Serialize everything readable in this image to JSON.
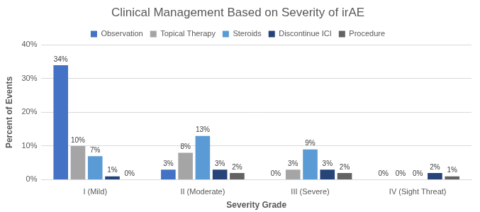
{
  "chart_data": {
    "type": "bar",
    "title": "Clinical Management Based on Severity of irAE",
    "x_label": "Severity Grade",
    "y_label": "Percent of Events",
    "categories": [
      "I (Mild)",
      "II (Moderate)",
      "III (Severe)",
      "IV (Sight Threat)"
    ],
    "series": [
      {
        "name": "Observation",
        "color": "#4472c4",
        "values": [
          34,
          3,
          0,
          0
        ],
        "value_labels": [
          "34%",
          "3%",
          "0%",
          "0%"
        ]
      },
      {
        "name": "Topical Therapy",
        "color": "#a5a5a5",
        "values": [
          10,
          8,
          3,
          0
        ],
        "value_labels": [
          "10%",
          "8%",
          "3%",
          "0%"
        ]
      },
      {
        "name": "Steroids",
        "color": "#5b9bd5",
        "values": [
          7,
          13,
          9,
          0
        ],
        "value_labels": [
          "7%",
          "13%",
          "9%",
          "0%"
        ]
      },
      {
        "name": "Discontinue ICI",
        "color": "#264478",
        "values": [
          1,
          3,
          3,
          2
        ],
        "value_labels": [
          "1%",
          "3%",
          "3%",
          "2%"
        ]
      },
      {
        "name": "Procedure",
        "color": "#636363",
        "values": [
          0,
          2,
          2,
          1
        ],
        "value_labels": [
          "0%",
          "2%",
          "2%",
          "1%"
        ]
      }
    ],
    "ylim": [
      0,
      40
    ],
    "yticks": [
      {
        "value": 0,
        "label": "0%"
      },
      {
        "value": 10,
        "label": "10%"
      },
      {
        "value": 20,
        "label": "20%"
      },
      {
        "value": 30,
        "label": "30%"
      },
      {
        "value": 40,
        "label": "40%"
      }
    ],
    "grid": true,
    "legend": "top",
    "data_labels": true
  }
}
